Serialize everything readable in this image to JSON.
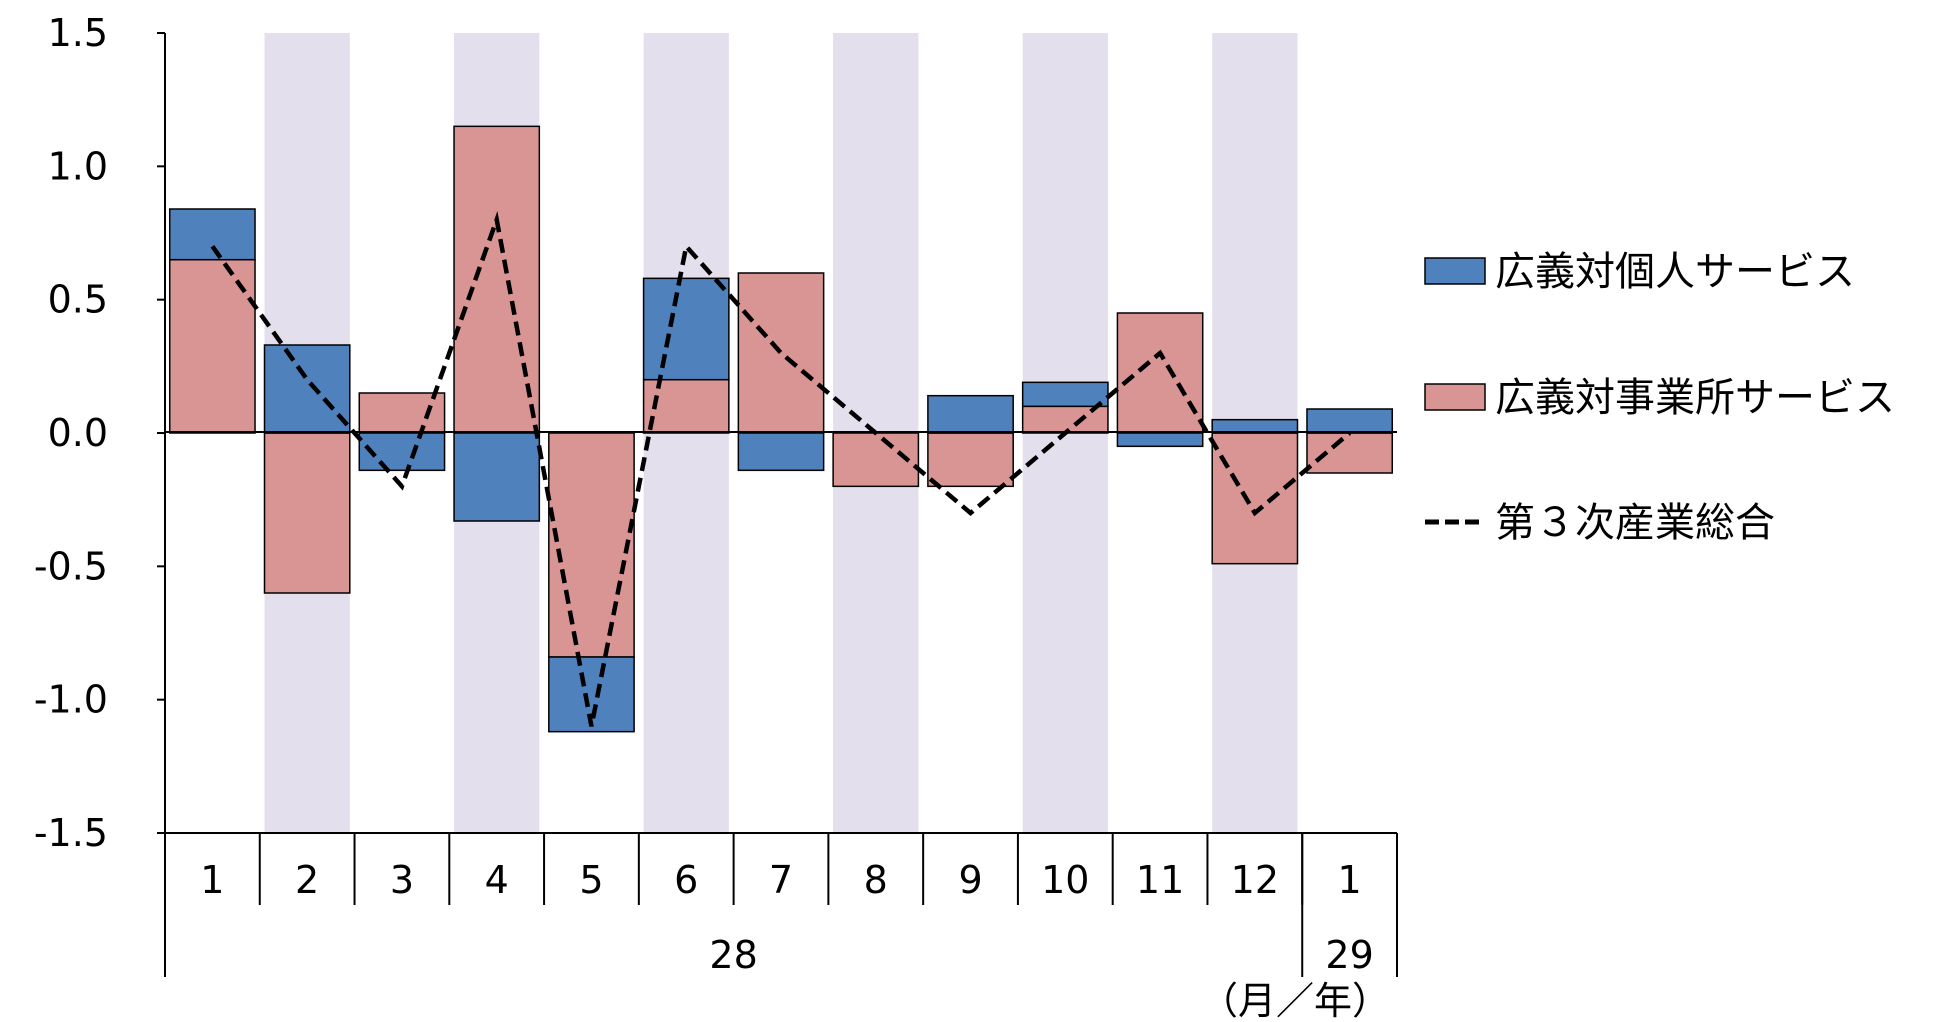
{
  "chart_data": {
    "type": "bar",
    "stacked": true,
    "categories": [
      "1",
      "2",
      "3",
      "4",
      "5",
      "6",
      "7",
      "8",
      "9",
      "10",
      "11",
      "12",
      "1"
    ],
    "year_groups": [
      {
        "label": "28",
        "from": 0,
        "to": 11
      },
      {
        "label": "29",
        "from": 12,
        "to": 12
      }
    ],
    "unit_label": "（月／年）",
    "y_ticks": [
      "1.5",
      "1.0",
      "0.5",
      "0.0",
      "-0.5",
      "-1.0",
      "-1.5"
    ],
    "ylim": [
      -1.5,
      1.5
    ],
    "shaded_categories": [
      1,
      3,
      5,
      7,
      9,
      11
    ],
    "series": [
      {
        "name": "広義対個人サービス",
        "type": "bar",
        "color": "#4f81bd",
        "values": [
          0.19,
          0.33,
          -0.14,
          -0.33,
          -0.28,
          0.38,
          -0.14,
          0.0,
          0.14,
          0.09,
          -0.05,
          0.05,
          0.09
        ]
      },
      {
        "name": "広義対事業所サービス",
        "type": "bar",
        "color": "#d99594",
        "values": [
          0.65,
          -0.6,
          0.15,
          1.15,
          -0.84,
          0.2,
          0.6,
          -0.2,
          -0.2,
          0.1,
          0.45,
          -0.49,
          -0.15
        ]
      },
      {
        "name": "第３次産業総合",
        "type": "line",
        "style": "dashed",
        "color": "#000000",
        "values": [
          0.7,
          0.2,
          -0.2,
          0.8,
          -1.1,
          0.7,
          0.3,
          0.0,
          -0.3,
          0.0,
          0.3,
          -0.3,
          0.0
        ]
      }
    ],
    "legend_position": "right",
    "colors": {
      "shade": "#e4dfec",
      "bar_stroke": "#000000"
    }
  }
}
